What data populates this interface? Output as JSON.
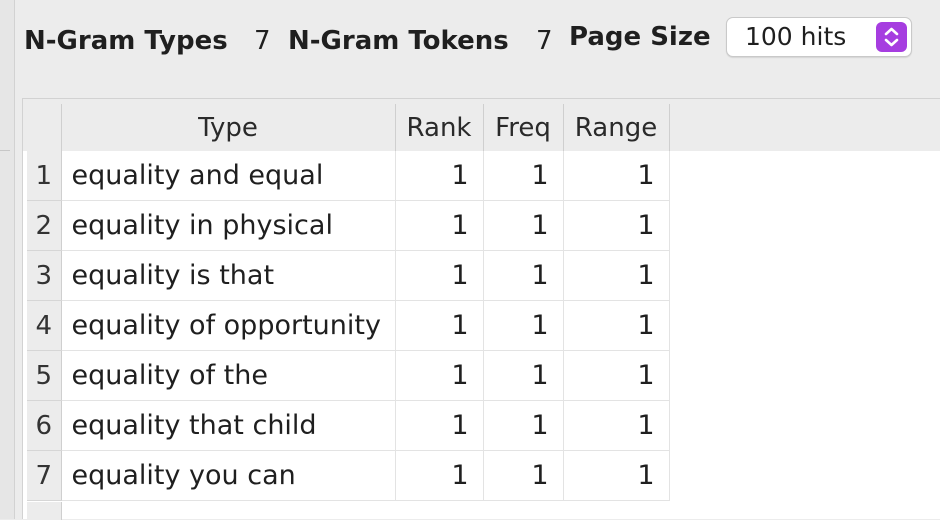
{
  "toolbar": {
    "ngram_types_label": "N-Gram Types",
    "ngram_types_value": "7",
    "ngram_tokens_label": "N-Gram Tokens",
    "ngram_tokens_value": "7",
    "page_size_label": "Page Size",
    "page_size_selected": "100 hits",
    "page_size_icon": "chevron-up-down-icon",
    "accent_color": "#a63de0"
  },
  "table": {
    "columns": [
      "Type",
      "Rank",
      "Freq",
      "Range"
    ],
    "rows": [
      {
        "num": "1",
        "type": "equality and equal",
        "rank": "1",
        "freq": "1",
        "range": "1"
      },
      {
        "num": "2",
        "type": "equality in physical",
        "rank": "1",
        "freq": "1",
        "range": "1"
      },
      {
        "num": "3",
        "type": "equality is that",
        "rank": "1",
        "freq": "1",
        "range": "1"
      },
      {
        "num": "4",
        "type": "equality of opportunity",
        "rank": "1",
        "freq": "1",
        "range": "1"
      },
      {
        "num": "5",
        "type": "equality of the",
        "rank": "1",
        "freq": "1",
        "range": "1"
      },
      {
        "num": "6",
        "type": "equality that child",
        "rank": "1",
        "freq": "1",
        "range": "1"
      },
      {
        "num": "7",
        "type": "equality you can",
        "rank": "1",
        "freq": "1",
        "range": "1"
      }
    ]
  }
}
